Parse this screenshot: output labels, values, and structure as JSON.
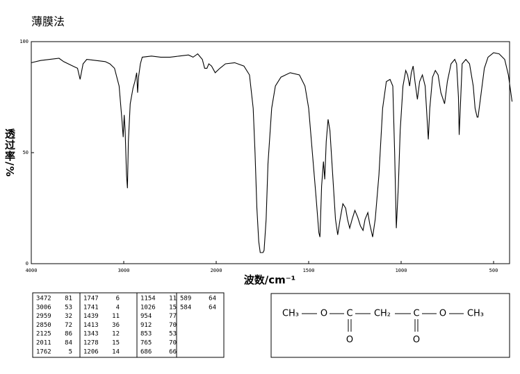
{
  "chart_data": {
    "type": "line",
    "title": "薄膜法",
    "xlabel": "波数/cm⁻¹",
    "ylabel": "透过率/%",
    "x": [
      4000,
      3900,
      3800,
      3700,
      3650,
      3600,
      3550,
      3500,
      3472,
      3440,
      3400,
      3300,
      3200,
      3150,
      3100,
      3050,
      3020,
      3006,
      2995,
      2985,
      2970,
      2960,
      2950,
      2930,
      2900,
      2880,
      2860,
      2850,
      2840,
      2820,
      2800,
      2700,
      2600,
      2500,
      2400,
      2300,
      2250,
      2200,
      2150,
      2125,
      2100,
      2080,
      2050,
      2011,
      1980,
      1950,
      1900,
      1850,
      1820,
      1800,
      1790,
      1780,
      1770,
      1762,
      1747,
      1741,
      1730,
      1720,
      1700,
      1680,
      1650,
      1600,
      1550,
      1520,
      1500,
      1480,
      1460,
      1445,
      1439,
      1430,
      1420,
      1413,
      1405,
      1395,
      1385,
      1370,
      1355,
      1343,
      1330,
      1315,
      1300,
      1290,
      1278,
      1265,
      1250,
      1235,
      1220,
      1206,
      1195,
      1180,
      1170,
      1154,
      1140,
      1120,
      1100,
      1080,
      1060,
      1045,
      1035,
      1026,
      1015,
      1005,
      990,
      975,
      965,
      954,
      945,
      935,
      925,
      912,
      900,
      885,
      870,
      853,
      845,
      830,
      815,
      800,
      785,
      765,
      750,
      730,
      710,
      700,
      690,
      686,
      680,
      670,
      650,
      630,
      610,
      600,
      589,
      584,
      570,
      550,
      530,
      500,
      470,
      440,
      420,
      400
    ],
    "series": [
      {
        "color": "#000000",
        "values": [
          90.5,
          91.5,
          92,
          92.5,
          91,
          90,
          89,
          88,
          83,
          90,
          92,
          91.5,
          91,
          90,
          88,
          80,
          65,
          57,
          67,
          60,
          40,
          34,
          55,
          72,
          79,
          82,
          86,
          77,
          84,
          90,
          93,
          93.5,
          93,
          93,
          93.5,
          94,
          93,
          94.5,
          92,
          88,
          88,
          90,
          89,
          86,
          88,
          90,
          90.5,
          89,
          85,
          70,
          50,
          25,
          10,
          5,
          5,
          6,
          20,
          45,
          70,
          80,
          84,
          86,
          85,
          80,
          70,
          50,
          30,
          14,
          12,
          35,
          46,
          38,
          55,
          65,
          60,
          40,
          20,
          13,
          20,
          27,
          25,
          20,
          16,
          20,
          24,
          21,
          17,
          15,
          20,
          23,
          18,
          12,
          20,
          40,
          70,
          82,
          83,
          80,
          50,
          16,
          35,
          60,
          80,
          87,
          85,
          80,
          86,
          89,
          82,
          74,
          82,
          85,
          80,
          56,
          70,
          84,
          87,
          85,
          77,
          72,
          82,
          90,
          92,
          90,
          75,
          58,
          70,
          90,
          92,
          90,
          80,
          70,
          66,
          66,
          75,
          88,
          93,
          95,
          94.5,
          92,
          85,
          73
        ]
      }
    ],
    "xlim": [
      4000,
      400
    ],
    "xticks": [
      4000,
      3000,
      2000,
      1500,
      1000,
      500
    ],
    "ylim": [
      0,
      100
    ],
    "yticks": [
      0,
      50,
      100
    ]
  },
  "peak_table": [
    [
      3472,
      81
    ],
    [
      3006,
      53
    ],
    [
      2959,
      32
    ],
    [
      2850,
      72
    ],
    [
      2125,
      86
    ],
    [
      2011,
      84
    ],
    [
      1762,
      5
    ],
    [
      1747,
      6
    ],
    [
      1741,
      4
    ],
    [
      1439,
      11
    ],
    [
      1413,
      36
    ],
    [
      1343,
      12
    ],
    [
      1278,
      15
    ],
    [
      1206,
      14
    ],
    [
      1154,
      11
    ],
    [
      1026,
      15
    ],
    [
      954,
      77
    ],
    [
      912,
      70
    ],
    [
      853,
      53
    ],
    [
      765,
      70
    ],
    [
      686,
      66
    ],
    [
      589,
      64
    ],
    [
      584,
      64
    ]
  ],
  "structure": {
    "chain": [
      "CH₃",
      "O",
      "C",
      "CH₂",
      "C",
      "O",
      "CH₃"
    ],
    "carbonyl_oxygens": [
      "O",
      "O"
    ]
  }
}
